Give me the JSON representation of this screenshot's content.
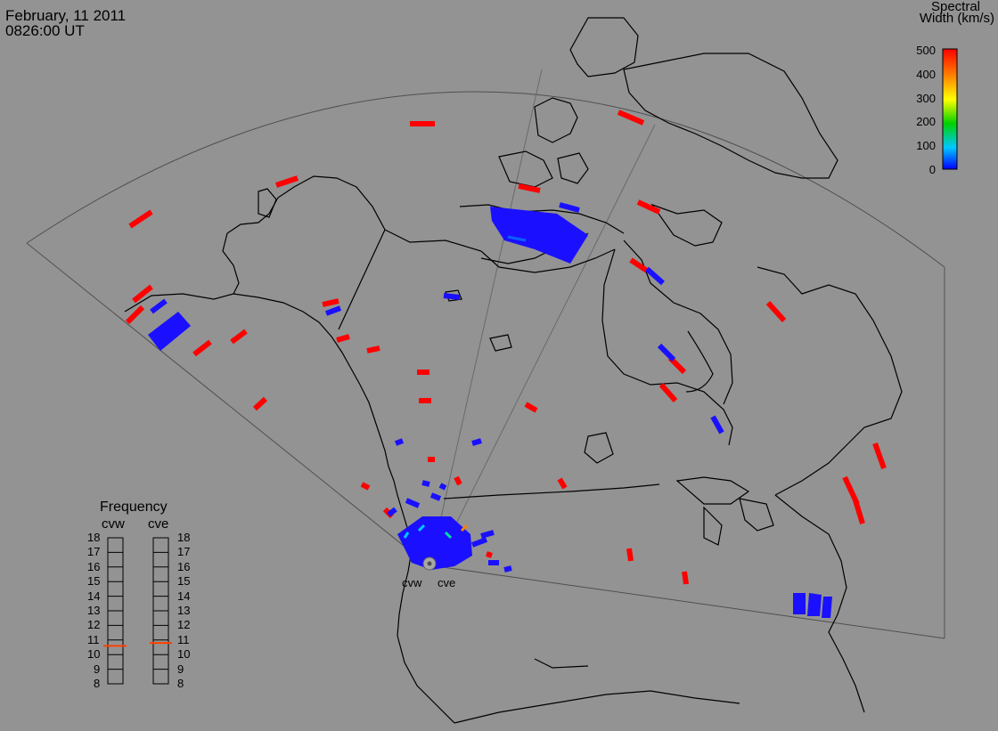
{
  "header": {
    "date": "February, 11 2011",
    "time": "0826:00 UT"
  },
  "colorbar": {
    "title_line1": "Spectral",
    "title_line2": "Width (km/s)",
    "ticks": [
      "500",
      "400",
      "300",
      "200",
      "100",
      "0"
    ],
    "min": 0,
    "max": 500,
    "stops": [
      "#0000ff",
      "#00e0ff",
      "#00d000",
      "#ffff00",
      "#ff8000",
      "#ff0000"
    ]
  },
  "radars": {
    "west_label": "cvw",
    "east_label": "cve"
  },
  "frequency": {
    "title": "Frequency",
    "col1": "cvw",
    "col2": "cve",
    "levels": [
      "18",
      "17",
      "16",
      "15",
      "14",
      "13",
      "12",
      "11",
      "10",
      "9",
      "8"
    ],
    "cvw_value": 10.6,
    "cve_value": 10.8,
    "marker_color": "#ff4000"
  },
  "colors": {
    "background": "#939393",
    "coast": "#000000",
    "fov": "#505050",
    "high": "#ff0000",
    "low": "#1a10ff"
  }
}
